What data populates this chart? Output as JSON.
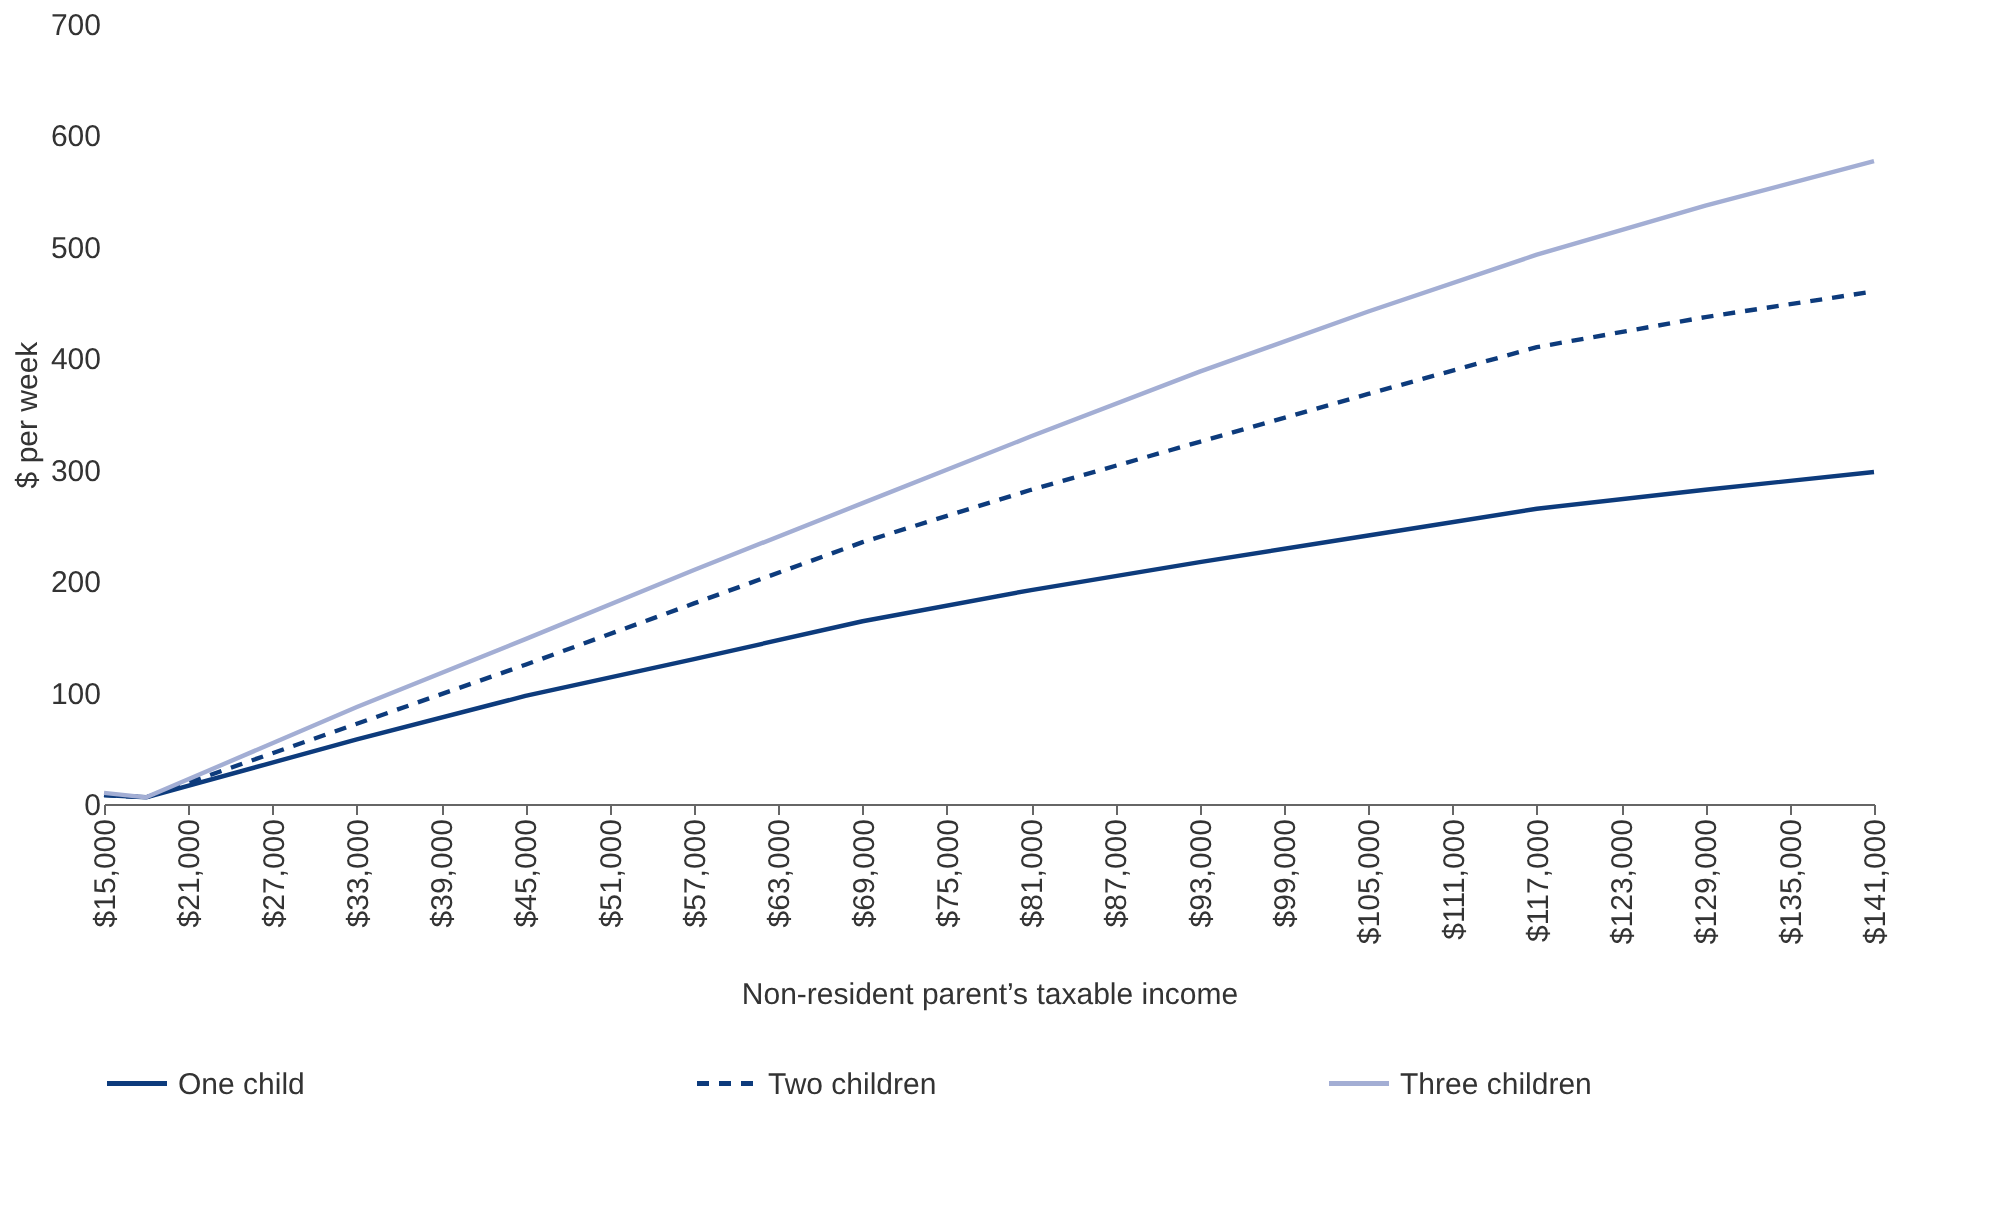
{
  "chart_data": {
    "type": "line",
    "xlabel": "Non-resident parent’s taxable income",
    "ylabel": "$ per week",
    "legend": "bottom",
    "grid": false,
    "marker": "none",
    "x": [
      15000,
      18000,
      33000,
      45000,
      57000,
      69000,
      81000,
      93000,
      105000,
      117000,
      129000,
      141000
    ],
    "xlim": [
      15000,
      141000
    ],
    "xticks": [
      {
        "value": 15000,
        "label": "$15,000"
      },
      {
        "value": 21000,
        "label": "$21,000"
      },
      {
        "value": 27000,
        "label": "$27,000"
      },
      {
        "value": 33000,
        "label": "$33,000"
      },
      {
        "value": 39000,
        "label": "$39,000"
      },
      {
        "value": 45000,
        "label": "$45,000"
      },
      {
        "value": 51000,
        "label": "$51,000"
      },
      {
        "value": 57000,
        "label": "$57,000"
      },
      {
        "value": 63000,
        "label": "$63,000"
      },
      {
        "value": 69000,
        "label": "$69,000"
      },
      {
        "value": 75000,
        "label": "$75,000"
      },
      {
        "value": 81000,
        "label": "$81,000"
      },
      {
        "value": 87000,
        "label": "$87,000"
      },
      {
        "value": 93000,
        "label": "$93,000"
      },
      {
        "value": 99000,
        "label": "$99,000"
      },
      {
        "value": 105000,
        "label": "$105,000"
      },
      {
        "value": 111000,
        "label": "$111,000"
      },
      {
        "value": 117000,
        "label": "$117,000"
      },
      {
        "value": 123000,
        "label": "$123,000"
      },
      {
        "value": 129000,
        "label": "$129,000"
      },
      {
        "value": 135000,
        "label": "$135,000"
      },
      {
        "value": 141000,
        "label": "$141,000"
      }
    ],
    "ylim": [
      0,
      700
    ],
    "yticks": [
      0,
      100,
      200,
      300,
      400,
      500,
      600,
      700
    ],
    "series": [
      {
        "name": "One child",
        "color": "#0d3b7c",
        "line_style": "solid",
        "values": [
          8,
          6,
          58,
          97,
          130,
          164,
          192,
          217,
          241,
          265,
          282,
          298
        ]
      },
      {
        "name": "Two children",
        "color": "#0d3b7c",
        "line_style": "dashed",
        "values": [
          8,
          6,
          72,
          125,
          180,
          235,
          282,
          325,
          368,
          410,
          437,
          460
        ]
      },
      {
        "name": "Three children",
        "color": "#a3aed4",
        "line_style": "solid",
        "values": [
          10,
          6,
          87,
          148,
          210,
          270,
          330,
          388,
          442,
          493,
          537,
          577
        ]
      }
    ]
  }
}
